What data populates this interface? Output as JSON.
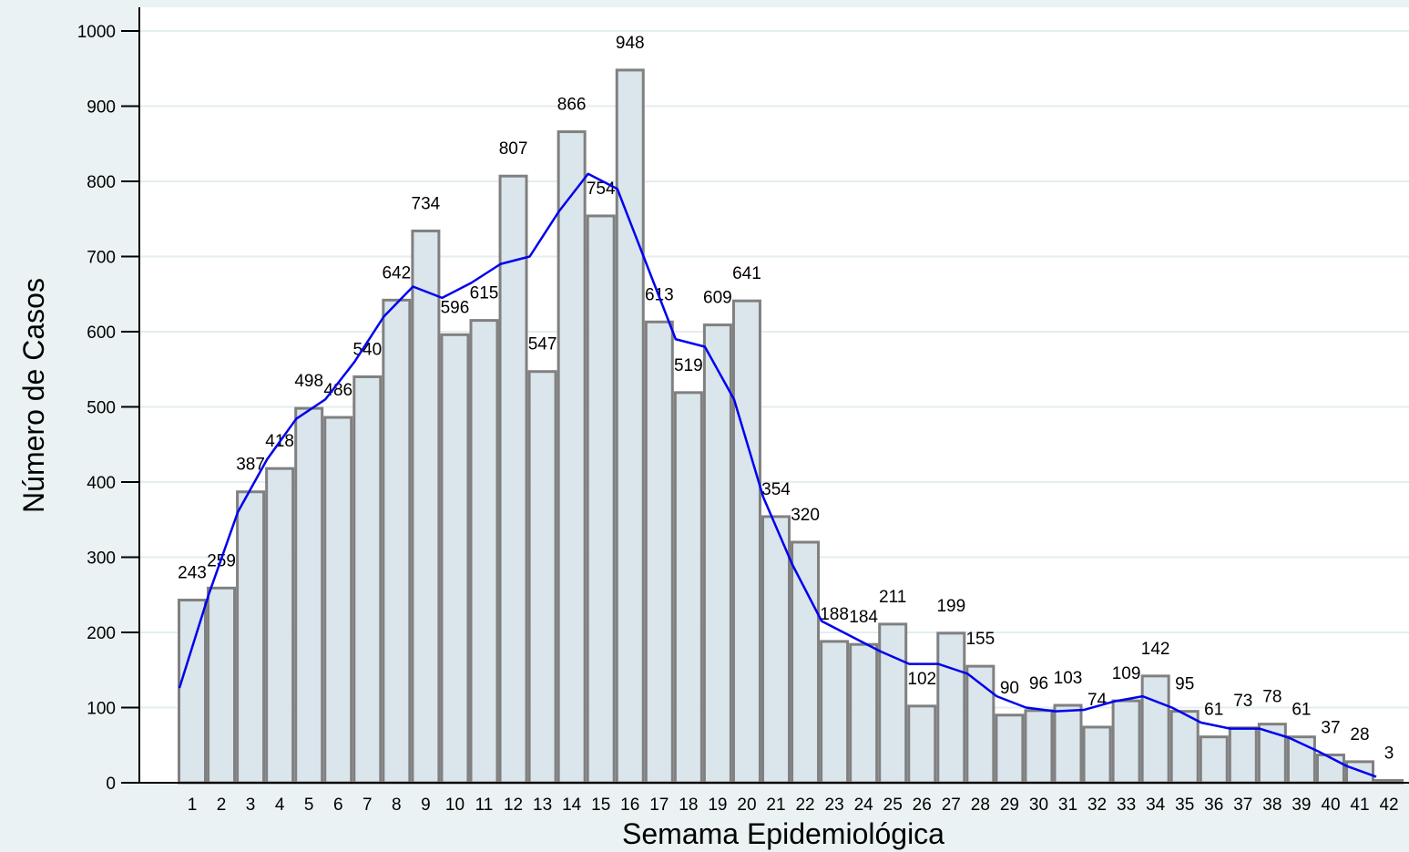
{
  "chart_data": {
    "type": "bar",
    "x_label": "Semama Epidemiológica",
    "y_label": "Número de Casos",
    "categories": [
      1,
      2,
      3,
      4,
      5,
      6,
      7,
      8,
      9,
      10,
      11,
      12,
      13,
      14,
      15,
      16,
      17,
      18,
      19,
      20,
      21,
      22,
      23,
      24,
      25,
      26,
      27,
      28,
      29,
      30,
      31,
      32,
      33,
      34,
      35,
      36,
      37,
      38,
      39,
      40,
      41,
      42
    ],
    "values": [
      243,
      259,
      387,
      418,
      498,
      486,
      540,
      642,
      734,
      596,
      615,
      807,
      547,
      866,
      754,
      948,
      613,
      519,
      609,
      641,
      354,
      320,
      188,
      184,
      211,
      102,
      199,
      155,
      90,
      96,
      103,
      74,
      109,
      142,
      95,
      61,
      73,
      78,
      61,
      37,
      28,
      3
    ],
    "color": "#dbe5ec",
    "edge_color": "#808080",
    "trend": {
      "color": "#0000ee",
      "values": [
        126,
        250,
        360,
        430,
        484,
        510,
        560,
        620,
        660,
        645,
        665,
        690,
        700,
        760,
        810,
        790,
        690,
        590,
        580,
        510,
        380,
        290,
        215,
        195,
        175,
        158,
        158,
        145,
        115,
        100,
        95,
        97,
        108,
        115,
        100,
        80,
        72,
        72,
        60,
        42,
        22,
        8
      ]
    },
    "ylim": [
      0,
      1000
    ],
    "yticks": [
      0,
      100,
      200,
      300,
      400,
      500,
      600,
      700,
      800,
      900,
      1000
    ],
    "grid": true
  }
}
